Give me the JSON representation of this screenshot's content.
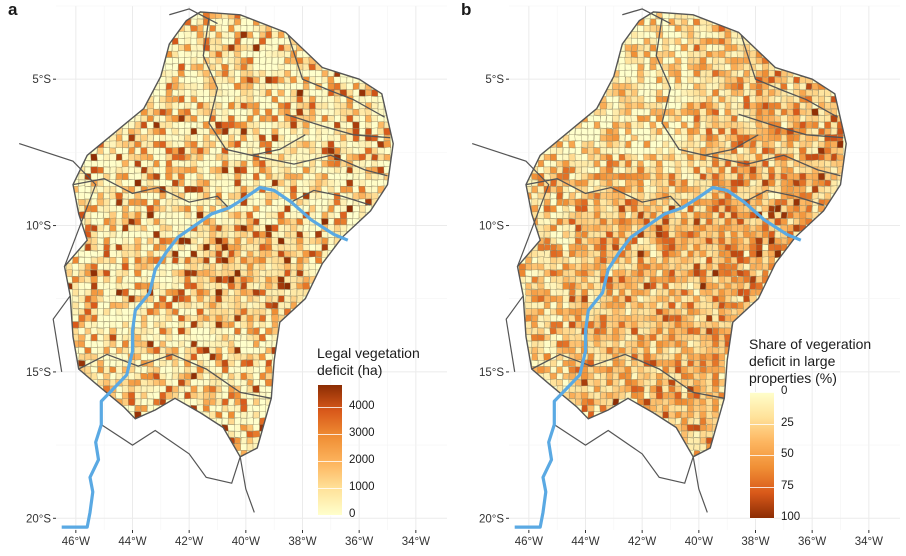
{
  "colors": {
    "river": "#5aa9e3",
    "state_border": "#555555",
    "municipality_border": "#8a8060",
    "grid": "#ebebeb",
    "ramp": [
      "#ffffcc",
      "#ffe29a",
      "#fdb55f",
      "#f08f35",
      "#d9591a",
      "#8c2d04"
    ]
  },
  "panels": [
    {
      "letter": "a",
      "legend": {
        "title_lines": [
          "Legal vegetation",
          "deficit (ha)"
        ],
        "range": [
          0,
          4800
        ],
        "ticks": [
          4000,
          3000,
          2000,
          1000,
          0
        ],
        "tick_labels": [
          "4000",
          "3000",
          "2000",
          "1000",
          "0"
        ]
      }
    },
    {
      "letter": "b",
      "legend": {
        "title_lines": [
          "Share of vegeration",
          "deficit in large",
          "properties (%)"
        ],
        "range": [
          0,
          100
        ],
        "ticks": [
          0,
          25,
          50,
          75,
          100
        ],
        "tick_labels": [
          "0",
          "25",
          "50",
          "75",
          "100"
        ]
      }
    }
  ],
  "axes": {
    "x_ticks": [
      -46,
      -44,
      -42,
      -40,
      -38,
      -36,
      -34
    ],
    "x_labels": [
      "46°W",
      "44°W",
      "42°W",
      "40°W",
      "38°W",
      "36°W",
      "34°W"
    ],
    "y_ticks": [
      -5,
      -10,
      -15,
      -20
    ],
    "y_labels": [
      "5°S",
      "10°S",
      "15°S",
      "20°S"
    ],
    "x_range": [
      -46.7,
      -32.9
    ],
    "y_range": [
      -20.4,
      -2.5
    ]
  }
}
